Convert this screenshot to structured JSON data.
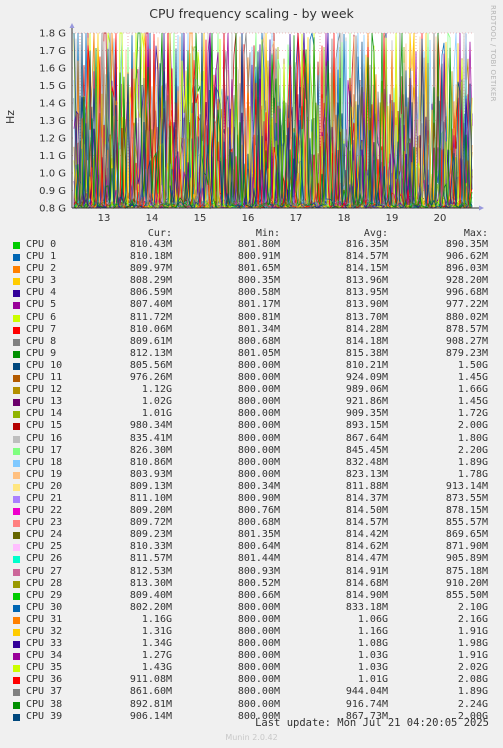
{
  "chart_data": {
    "type": "line",
    "title": "CPU frequency scaling - by week",
    "ylabel": "Hz",
    "ylim": [
      800000000,
      1800000000
    ],
    "yticks": [
      {
        "value": 800000000,
        "label": "0.8 G"
      },
      {
        "value": 900000000,
        "label": "0.9 G"
      },
      {
        "value": 1000000000,
        "label": "1.0 G"
      },
      {
        "value": 1100000000,
        "label": "1.1 G"
      },
      {
        "value": 1200000000,
        "label": "1.2 G"
      },
      {
        "value": 1300000000,
        "label": "1.3 G"
      },
      {
        "value": 1400000000,
        "label": "1.4 G"
      },
      {
        "value": 1500000000,
        "label": "1.5 G"
      },
      {
        "value": 1600000000,
        "label": "1.6 G"
      },
      {
        "value": 1700000000,
        "label": "1.7 G"
      },
      {
        "value": 1800000000,
        "label": "1.8 G"
      }
    ],
    "xticks": [
      "13",
      "14",
      "15",
      "16",
      "17",
      "18",
      "19",
      "20"
    ],
    "grid": true,
    "columns": [
      "Cur:",
      "Min:",
      "Avg:",
      "Max:"
    ],
    "series": [
      {
        "name": "CPU 0",
        "color": "#00cc00",
        "cur": "810.43M",
        "min": "801.80M",
        "avg": "816.35M",
        "max": "890.35M"
      },
      {
        "name": "CPU 1",
        "color": "#0066b3",
        "cur": "810.18M",
        "min": "800.91M",
        "avg": "814.57M",
        "max": "906.62M"
      },
      {
        "name": "CPU 2",
        "color": "#ff8000",
        "cur": "809.97M",
        "min": "801.65M",
        "avg": "814.15M",
        "max": "896.03M"
      },
      {
        "name": "CPU 3",
        "color": "#ffcc00",
        "cur": "808.29M",
        "min": "800.35M",
        "avg": "813.96M",
        "max": "928.20M"
      },
      {
        "name": "CPU 4",
        "color": "#330099",
        "cur": "806.59M",
        "min": "800.58M",
        "avg": "813.95M",
        "max": "996.68M"
      },
      {
        "name": "CPU 5",
        "color": "#990099",
        "cur": "807.40M",
        "min": "801.17M",
        "avg": "813.90M",
        "max": "977.22M"
      },
      {
        "name": "CPU 6",
        "color": "#ccff00",
        "cur": "811.72M",
        "min": "800.81M",
        "avg": "813.70M",
        "max": "880.02M"
      },
      {
        "name": "CPU 7",
        "color": "#ff0000",
        "cur": "810.06M",
        "min": "801.34M",
        "avg": "814.28M",
        "max": "878.57M"
      },
      {
        "name": "CPU 8",
        "color": "#808080",
        "cur": "809.61M",
        "min": "800.68M",
        "avg": "814.18M",
        "max": "908.27M"
      },
      {
        "name": "CPU 9",
        "color": "#008f00",
        "cur": "812.13M",
        "min": "801.05M",
        "avg": "815.38M",
        "max": "879.23M"
      },
      {
        "name": "CPU 10",
        "color": "#00487d",
        "cur": "805.56M",
        "min": "800.00M",
        "avg": "810.21M",
        "max": "1.50G"
      },
      {
        "name": "CPU 11",
        "color": "#b35a00",
        "cur": "976.26M",
        "min": "800.00M",
        "avg": "924.09M",
        "max": "1.45G"
      },
      {
        "name": "CPU 12",
        "color": "#b38f00",
        "cur": "1.12G",
        "min": "800.00M",
        "avg": "989.06M",
        "max": "1.66G"
      },
      {
        "name": "CPU 13",
        "color": "#6b006b",
        "cur": "1.02G",
        "min": "800.00M",
        "avg": "921.86M",
        "max": "1.45G"
      },
      {
        "name": "CPU 14",
        "color": "#8fb300",
        "cur": "1.01G",
        "min": "800.00M",
        "avg": "909.35M",
        "max": "1.72G"
      },
      {
        "name": "CPU 15",
        "color": "#b30000",
        "cur": "980.34M",
        "min": "800.00M",
        "avg": "893.15M",
        "max": "2.00G"
      },
      {
        "name": "CPU 16",
        "color": "#bebebe",
        "cur": "835.41M",
        "min": "800.00M",
        "avg": "867.64M",
        "max": "1.80G"
      },
      {
        "name": "CPU 17",
        "color": "#80ff80",
        "cur": "826.30M",
        "min": "800.00M",
        "avg": "845.45M",
        "max": "2.20G"
      },
      {
        "name": "CPU 18",
        "color": "#80c9ff",
        "cur": "810.86M",
        "min": "800.00M",
        "avg": "832.48M",
        "max": "1.89G"
      },
      {
        "name": "CPU 19",
        "color": "#ffc080",
        "cur": "803.93M",
        "min": "800.00M",
        "avg": "823.13M",
        "max": "1.78G"
      },
      {
        "name": "CPU 20",
        "color": "#ffe680",
        "cur": "809.13M",
        "min": "800.34M",
        "avg": "811.88M",
        "max": "913.14M"
      },
      {
        "name": "CPU 21",
        "color": "#aa80ff",
        "cur": "811.10M",
        "min": "800.90M",
        "avg": "814.37M",
        "max": "873.55M"
      },
      {
        "name": "CPU 22",
        "color": "#ee00cc",
        "cur": "809.20M",
        "min": "800.76M",
        "avg": "814.50M",
        "max": "878.15M"
      },
      {
        "name": "CPU 23",
        "color": "#ff8080",
        "cur": "809.72M",
        "min": "800.68M",
        "avg": "814.57M",
        "max": "855.57M"
      },
      {
        "name": "CPU 24",
        "color": "#666600",
        "cur": "809.23M",
        "min": "801.35M",
        "avg": "814.42M",
        "max": "869.65M"
      },
      {
        "name": "CPU 25",
        "color": "#ffbfff",
        "cur": "810.33M",
        "min": "800.64M",
        "avg": "814.62M",
        "max": "871.90M"
      },
      {
        "name": "CPU 26",
        "color": "#00ffcc",
        "cur": "811.57M",
        "min": "801.44M",
        "avg": "814.47M",
        "max": "905.89M"
      },
      {
        "name": "CPU 27",
        "color": "#cc6699",
        "cur": "812.53M",
        "min": "800.93M",
        "avg": "814.91M",
        "max": "875.18M"
      },
      {
        "name": "CPU 28",
        "color": "#999900",
        "cur": "813.30M",
        "min": "800.52M",
        "avg": "814.68M",
        "max": "910.20M"
      },
      {
        "name": "CPU 29",
        "color": "#00cc00",
        "cur": "809.40M",
        "min": "800.66M",
        "avg": "814.90M",
        "max": "855.50M"
      },
      {
        "name": "CPU 30",
        "color": "#0066b3",
        "cur": "802.20M",
        "min": "800.00M",
        "avg": "833.18M",
        "max": "2.10G"
      },
      {
        "name": "CPU 31",
        "color": "#ff8000",
        "cur": "1.16G",
        "min": "800.00M",
        "avg": "1.06G",
        "max": "2.16G"
      },
      {
        "name": "CPU 32",
        "color": "#ffcc00",
        "cur": "1.31G",
        "min": "800.00M",
        "avg": "1.16G",
        "max": "1.91G"
      },
      {
        "name": "CPU 33",
        "color": "#330099",
        "cur": "1.34G",
        "min": "800.00M",
        "avg": "1.08G",
        "max": "1.98G"
      },
      {
        "name": "CPU 34",
        "color": "#990099",
        "cur": "1.27G",
        "min": "800.00M",
        "avg": "1.03G",
        "max": "1.91G"
      },
      {
        "name": "CPU 35",
        "color": "#ccff00",
        "cur": "1.43G",
        "min": "800.00M",
        "avg": "1.03G",
        "max": "2.02G"
      },
      {
        "name": "CPU 36",
        "color": "#ff0000",
        "cur": "911.08M",
        "min": "800.00M",
        "avg": "1.01G",
        "max": "2.08G"
      },
      {
        "name": "CPU 37",
        "color": "#808080",
        "cur": "861.60M",
        "min": "800.00M",
        "avg": "944.04M",
        "max": "1.89G"
      },
      {
        "name": "CPU 38",
        "color": "#008f00",
        "cur": "892.81M",
        "min": "800.00M",
        "avg": "916.74M",
        "max": "2.24G"
      },
      {
        "name": "CPU 39",
        "color": "#00487d",
        "cur": "906.14M",
        "min": "800.00M",
        "avg": "867.73M",
        "max": "2.00G"
      }
    ]
  },
  "last_update": "Last update:  Mon Jul 21 04:20:05 2025",
  "footer": "Munin 2.0.42",
  "side_label": "RRDTOOL / TOBI OETIKER"
}
